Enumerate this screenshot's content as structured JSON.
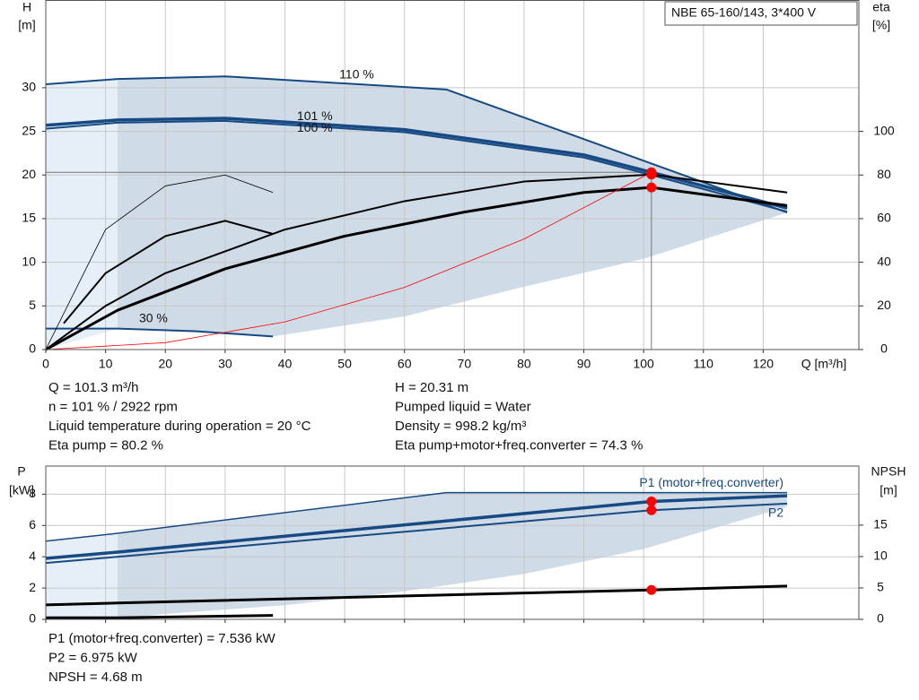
{
  "chart_data": [
    {
      "type": "line",
      "title": "NBE 65-160/143, 3*400 V",
      "y_label": "H",
      "y_unit": "[m]",
      "y2_label": "eta",
      "y2_unit": "[%]",
      "x_label": "Q [m³/h]",
      "xlim": [
        0,
        136
      ],
      "xticks": [
        0,
        10,
        20,
        30,
        40,
        50,
        60,
        70,
        80,
        90,
        100,
        110,
        120
      ],
      "ylim": [
        0,
        40
      ],
      "yticks": [
        0,
        5,
        10,
        15,
        20,
        25,
        30
      ],
      "y2lim": [
        0,
        160
      ],
      "y2ticks": [
        0,
        20,
        40,
        60,
        80,
        100
      ],
      "grid": true,
      "areas": [
        {
          "color": "#e6eff8",
          "x": [
            0,
            12,
            12,
            0
          ],
          "values": [
            30.4,
            31.0,
            2.4,
            0
          ]
        },
        {
          "color": "#cfdbe7",
          "x": [
            12,
            30,
            67,
            124,
            100,
            80,
            60,
            38,
            12
          ],
          "values": [
            31.0,
            31.3,
            29.8,
            15.7,
            10.4,
            7.2,
            3.8,
            1.5,
            2.4
          ]
        }
      ],
      "series": [
        {
          "name": "110 %",
          "color": "#174a82",
          "width": 2,
          "x": [
            0,
            12,
            30,
            67,
            124
          ],
          "values": [
            30.4,
            31.0,
            31.3,
            29.8,
            15.7
          ]
        },
        {
          "name": "101 %",
          "color": "#174a82",
          "width": 3.5,
          "x": [
            0,
            12,
            30,
            60,
            90,
            101.3,
            124
          ],
          "values": [
            25.7,
            26.3,
            26.5,
            25.2,
            22.3,
            20.31,
            16.2
          ]
        },
        {
          "name": "100 %",
          "color": "#174a82",
          "width": 2,
          "x": [
            0,
            12,
            30,
            60,
            90,
            101.3,
            124
          ],
          "values": [
            25.3,
            26.0,
            26.2,
            24.9,
            22.0,
            20.0,
            15.8
          ]
        },
        {
          "name": "30 %",
          "color": "#174a82",
          "width": 2,
          "x": [
            0,
            12,
            25,
            38
          ],
          "values": [
            2.4,
            2.4,
            2.1,
            1.5
          ]
        },
        {
          "color": "#000000",
          "width": 2,
          "axis": "y2",
          "x": [
            0,
            10,
            20,
            40,
            60,
            80,
            101.3,
            124
          ],
          "values": [
            0,
            20,
            35,
            55,
            68,
            77,
            80.2,
            72
          ]
        },
        {
          "color": "#000000",
          "width": 3,
          "axis": "y2",
          "x": [
            0,
            12,
            30,
            50,
            70,
            90,
            101.3,
            124
          ],
          "values": [
            0,
            18,
            37,
            52,
            63,
            72,
            74.3,
            66
          ]
        },
        {
          "color": "#000000",
          "width": 0.8,
          "axis": "y2",
          "x": [
            0,
            10,
            20,
            30,
            38
          ],
          "values": [
            0,
            55,
            75,
            80,
            72
          ]
        },
        {
          "color": "#000000",
          "width": 2,
          "axis": "y2",
          "x": [
            3,
            10,
            20,
            30,
            38
          ],
          "values": [
            12,
            35,
            52,
            59,
            53
          ]
        },
        {
          "color": "#ff0000",
          "width": 0.8,
          "x": [
            0,
            20,
            40,
            60,
            80,
            101.3
          ],
          "values": [
            0,
            0.79,
            3.17,
            7.12,
            12.67,
            20.31
          ]
        }
      ],
      "marker_color": "#ff0000",
      "markers": [
        {
          "x": 101.3,
          "value": 20.31
        },
        {
          "x": 101.3,
          "value": 80.2,
          "axis": "y2"
        },
        {
          "x": 101.3,
          "value": 74.3,
          "axis": "y2"
        }
      ]
    },
    {
      "type": "line",
      "y_label": "P",
      "y_unit": "[kW]",
      "y2_label": "NPSH",
      "y2_unit": "[m]",
      "xlim": [
        0,
        136
      ],
      "xticks": [
        0,
        10,
        20,
        30,
        40,
        50,
        60,
        70,
        80,
        90,
        100,
        110,
        120
      ],
      "ylim": [
        0,
        9.8
      ],
      "yticks": [
        0,
        2,
        4,
        6,
        8
      ],
      "y2lim": [
        0,
        24.4
      ],
      "y2ticks": [
        0,
        5,
        10,
        15
      ],
      "grid": true,
      "areas": [
        {
          "color": "#e6eff8",
          "x": [
            0,
            12,
            12,
            0
          ],
          "values": [
            5.0,
            5.5,
            0,
            0
          ]
        },
        {
          "color": "#cfdbe7",
          "x": [
            12,
            67,
            124,
            124,
            100,
            80,
            60,
            40,
            20,
            12
          ],
          "values": [
            5.5,
            8.1,
            8.1,
            7.2,
            4.5,
            2.9,
            1.8,
            0.9,
            0.35,
            0
          ]
        }
      ],
      "series": [
        {
          "color": "#174a82",
          "width": 1.5,
          "x": [
            0,
            12,
            67,
            124
          ],
          "values": [
            5.0,
            5.5,
            8.1,
            8.1
          ]
        },
        {
          "name": "P1 (motor+freq.converter)",
          "color": "#174a82",
          "width": 3.5,
          "x": [
            0,
            12,
            101.3,
            124
          ],
          "values": [
            3.9,
            4.3,
            7.536,
            7.9
          ]
        },
        {
          "name": "P2",
          "color": "#174a82",
          "width": 2,
          "x": [
            0,
            12,
            101.3,
            124
          ],
          "values": [
            3.6,
            4.0,
            6.975,
            7.4
          ]
        },
        {
          "color": "#000000",
          "width": 3,
          "axis": "y2",
          "x": [
            0,
            12,
            101.3,
            124
          ],
          "values": [
            2.3,
            2.6,
            4.68,
            5.3
          ]
        },
        {
          "color": "#000000",
          "width": 3,
          "x": [
            0,
            12,
            38
          ],
          "values": [
            0.1,
            0.1,
            0.25
          ]
        }
      ],
      "marker_color": "#ff0000",
      "markers": [
        {
          "x": 101.3,
          "value": 7.536
        },
        {
          "x": 101.3,
          "value": 6.975
        },
        {
          "x": 101.3,
          "value": 4.68,
          "axis": "y2"
        }
      ]
    }
  ],
  "info": {
    "operation": [
      "Q = 101.3 m³/h",
      "n = 101 % / 2922 rpm",
      "Liquid temperature during operation = 20 °C",
      "Eta pump = 80.2 %"
    ],
    "liquid": [
      "H = 20.31 m",
      "Pumped liquid = Water",
      "Density = 998.2 kg/m³",
      "Eta pump+motor+freq.converter = 74.3 %"
    ],
    "power": [
      "P1 (motor+freq.converter) = 7.536 kW",
      "P2 = 6.975 kW",
      "NPSH = 4.68 m"
    ]
  }
}
